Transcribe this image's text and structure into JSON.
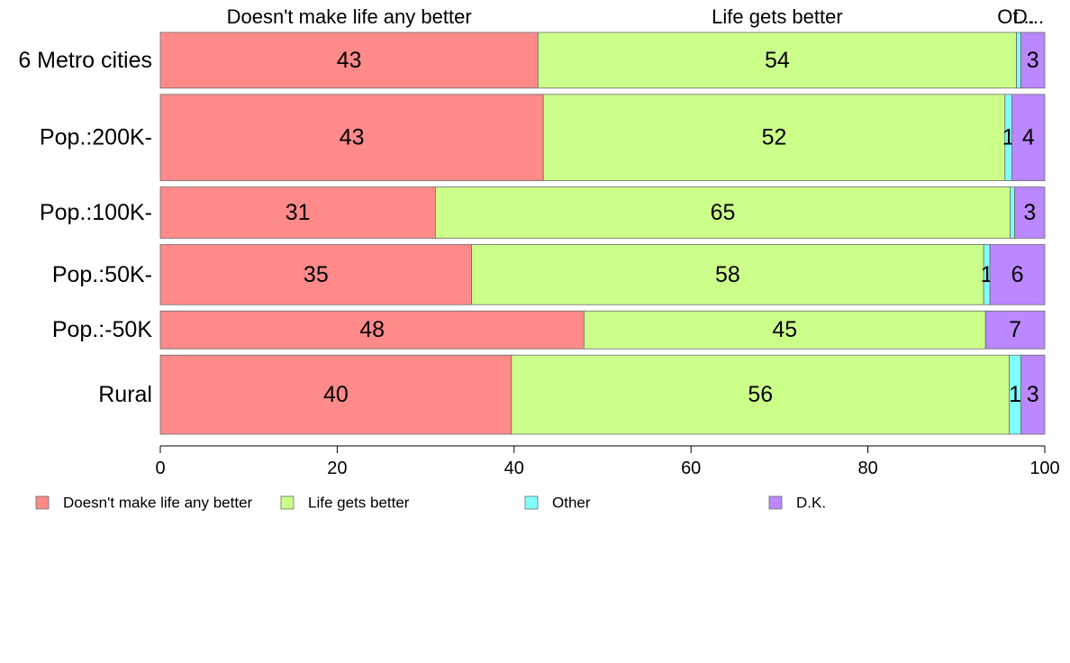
{
  "chart_data": {
    "type": "bar",
    "orientation": "horizontal",
    "stacked": true,
    "normalized": true,
    "categories": [
      "6 Metro cities",
      "Pop.:200K-",
      "Pop.:100K-",
      "Pop.:50K-",
      "Pop.:-50K",
      "Rural"
    ],
    "category_weights": [
      1.0,
      1.55,
      0.92,
      1.08,
      0.68,
      1.42
    ],
    "series": [
      {
        "name": "Doesn't make life any better",
        "color": "#ff8a8a",
        "values": [
          42.7,
          43.3,
          31.1,
          35.2,
          47.9,
          39.7
        ],
        "labels": [
          "43",
          "43",
          "31",
          "35",
          "48",
          "40"
        ]
      },
      {
        "name": "Life gets better",
        "color": "#ccff8a",
        "values": [
          54.1,
          52.2,
          65.0,
          57.9,
          45.4,
          56.3
        ],
        "labels": [
          "54",
          "52",
          "65",
          "58",
          "45",
          "56"
        ]
      },
      {
        "name": "Other",
        "color": "#80ffff",
        "values": [
          0.5,
          0.8,
          0.5,
          0.7,
          0.0,
          1.3
        ],
        "labels": [
          "",
          "1",
          "",
          "1",
          "",
          "1"
        ]
      },
      {
        "name": "D.K.",
        "color": "#bb88ff",
        "values": [
          2.7,
          3.7,
          3.4,
          6.2,
          6.7,
          2.7
        ],
        "labels": [
          "3",
          "4",
          "3",
          "6",
          "7",
          "3"
        ]
      }
    ],
    "column_headers": [
      {
        "text": "Doesn't make life any better",
        "series": 0
      },
      {
        "text": "Life gets better",
        "series": 1
      },
      {
        "text": "Ot...",
        "series": 2
      },
      {
        "text": "D...",
        "series": 3
      }
    ],
    "xlim": [
      0,
      100
    ],
    "x_ticks": [
      0,
      20,
      40,
      60,
      80,
      100
    ],
    "x_tick_labels": [
      "0",
      "20",
      "40",
      "60",
      "80",
      "100"
    ],
    "xlabel": "",
    "ylabel": "",
    "title": "",
    "grid": false,
    "legend_position": "bottom"
  }
}
